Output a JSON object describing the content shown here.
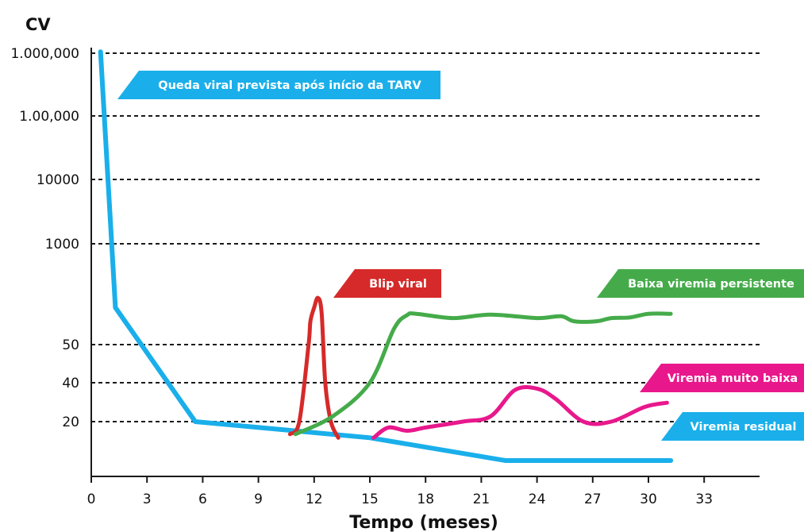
{
  "chart_data": {
    "type": "line",
    "xlabel": "Tempo (meses)",
    "ylabel": "CV",
    "x_ticks": [
      0,
      3,
      6,
      9,
      12,
      15,
      18,
      21,
      24,
      27,
      30,
      33
    ],
    "y_ticks": [
      {
        "label": "1.000,000",
        "value": 1000000
      },
      {
        "label": "1.00,000",
        "value": 100000
      },
      {
        "label": "10000",
        "value": 10000
      },
      {
        "label": "1000",
        "value": 1000
      },
      {
        "label": "50",
        "value": 50
      },
      {
        "label": "40",
        "value": 40
      },
      {
        "label": "20",
        "value": 20
      }
    ],
    "grid": "dashed horizontal lines at each y tick",
    "scale_note": "non-uniform value axis; y_level is the position on that axis",
    "series": [
      {
        "name": "Queda viral prevista após início da TARV",
        "color": "#1aafea",
        "points": [
          [
            0.5,
            1050000
          ],
          [
            1.3,
            150
          ],
          [
            5.6,
            20
          ],
          [
            15,
            15
          ],
          [
            22.3,
            10
          ],
          [
            31.2,
            10
          ]
        ]
      },
      {
        "name": "Blip viral",
        "color": "#d62a2a",
        "points": [
          [
            10.7,
            16
          ],
          [
            11.2,
            20
          ],
          [
            11.7,
            50
          ],
          [
            11.8,
            100
          ],
          [
            12.0,
            150
          ],
          [
            12.2,
            200
          ],
          [
            12.4,
            130
          ],
          [
            12.6,
            40
          ],
          [
            12.9,
            20
          ],
          [
            13.3,
            15
          ]
        ]
      },
      {
        "name": "Baixa viremia persistente",
        "color": "#45ab4a",
        "points": [
          [
            11.0,
            16
          ],
          [
            13.0,
            22
          ],
          [
            15.0,
            40
          ],
          [
            16.3,
            80
          ],
          [
            17.0,
            120
          ],
          [
            17.5,
            125
          ],
          [
            19.5,
            110
          ],
          [
            21.5,
            122
          ],
          [
            24.0,
            110
          ],
          [
            25.3,
            116
          ],
          [
            26.0,
            100
          ],
          [
            27.2,
            100
          ],
          [
            28.0,
            110
          ],
          [
            29.0,
            112
          ],
          [
            30.0,
            125
          ],
          [
            31.2,
            125
          ]
        ]
      },
      {
        "name": "Viremia muito baixa",
        "color": "#e8188c",
        "points": [
          [
            15.2,
            15
          ],
          [
            16.0,
            18
          ],
          [
            17.0,
            17
          ],
          [
            18.0,
            18
          ],
          [
            20.0,
            20
          ],
          [
            21.5,
            22
          ],
          [
            22.8,
            35
          ],
          [
            24.0,
            36
          ],
          [
            25.0,
            30
          ],
          [
            26.5,
            20
          ],
          [
            28.0,
            20
          ],
          [
            29.8,
            26
          ],
          [
            31.0,
            28
          ]
        ]
      },
      {
        "name": "Viremia residual",
        "color": "#1aafea",
        "points": []
      }
    ]
  }
}
